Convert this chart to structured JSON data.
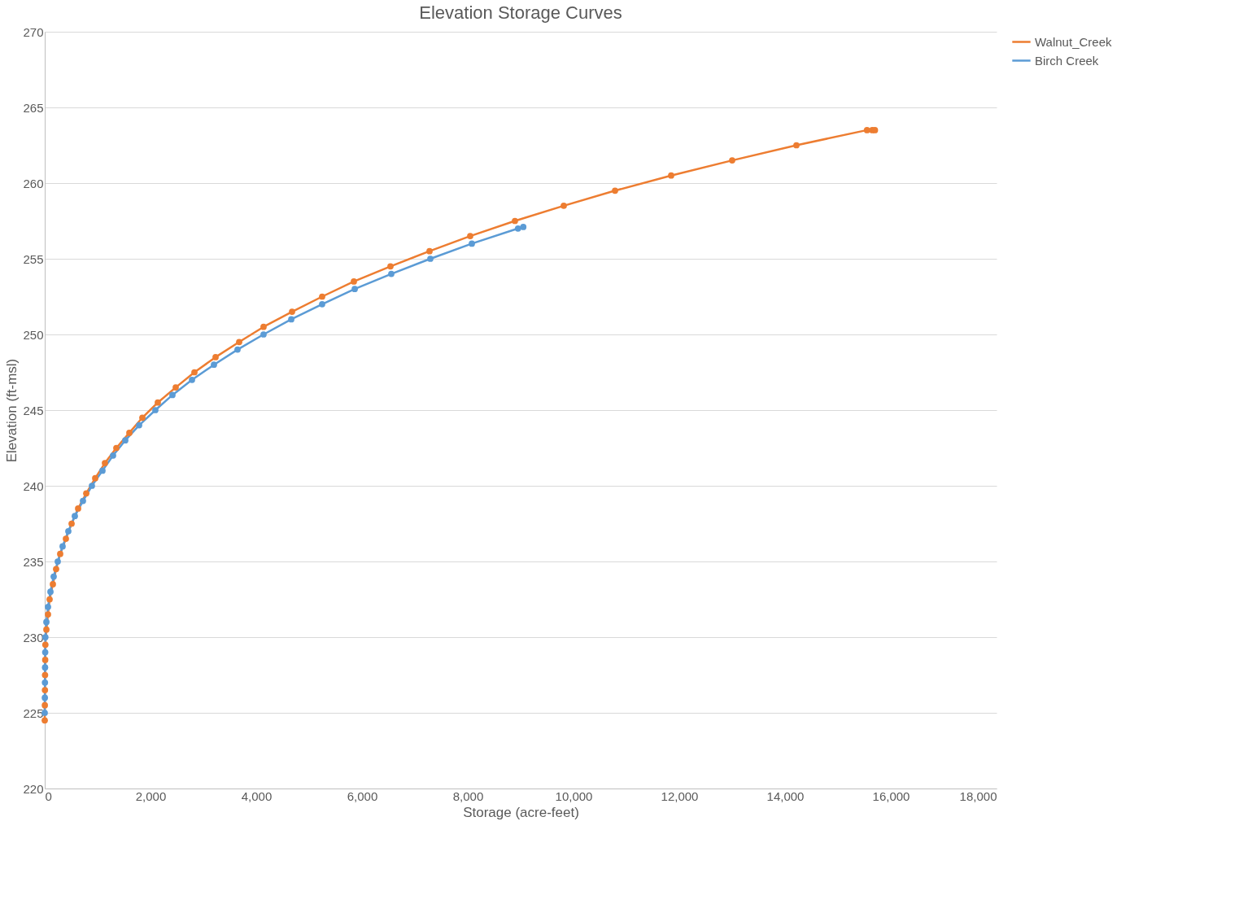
{
  "chart_data": {
    "type": "line",
    "title": "Elevation Storage Curves",
    "xlabel": "Storage (acre-feet)",
    "ylabel": "Elevation (ft-msl)",
    "xlim": [
      0,
      18000
    ],
    "xticks": [
      {
        "value": 0,
        "label": "0"
      },
      {
        "value": 2000,
        "label": "2,000"
      },
      {
        "value": 4000,
        "label": "4,000"
      },
      {
        "value": 6000,
        "label": "6,000"
      },
      {
        "value": 8000,
        "label": "8,000"
      },
      {
        "value": 10000,
        "label": "10,000"
      },
      {
        "value": 12000,
        "label": "12,000"
      },
      {
        "value": 14000,
        "label": "14,000"
      },
      {
        "value": 16000,
        "label": "16,000"
      },
      {
        "value": 18000,
        "label": "18,000"
      }
    ],
    "ylim": [
      220,
      270
    ],
    "yticks": [
      220,
      225,
      230,
      235,
      240,
      245,
      250,
      255,
      260,
      265,
      270
    ],
    "grid": "y",
    "legend": "right",
    "marker": "circle",
    "line_style": "solid",
    "series": [
      {
        "name": "Walnut_Creek",
        "color": "#ed7d31",
        "x": [
          0,
          2,
          4,
          6,
          9,
          12,
          31,
          62,
          92,
          154,
          215,
          292,
          400,
          508,
          631,
          785,
          954,
          1138,
          1354,
          1600,
          1846,
          2138,
          2477,
          2831,
          3231,
          3677,
          4138,
          4677,
          5246,
          5846,
          6538,
          7277,
          8046,
          8892,
          9815,
          10785,
          11846,
          13000,
          14215,
          15550,
          15650,
          15700
        ],
        "values": [
          224.5,
          225.5,
          226.5,
          227.5,
          228.5,
          229.5,
          230.5,
          231.5,
          232.5,
          233.5,
          234.5,
          235.5,
          236.5,
          237.5,
          238.5,
          239.5,
          240.5,
          241.5,
          242.5,
          243.5,
          244.5,
          245.5,
          246.5,
          247.5,
          248.5,
          249.5,
          250.5,
          251.5,
          252.5,
          253.5,
          254.5,
          255.5,
          256.5,
          257.5,
          258.5,
          259.5,
          260.5,
          261.5,
          262.5,
          263.5,
          263.5,
          263.5
        ]
      },
      {
        "name": "Birch Creek",
        "color": "#5b9bd5",
        "x": [
          0,
          2,
          4,
          6,
          9,
          12,
          31,
          62,
          108,
          169,
          246,
          338,
          446,
          569,
          723,
          892,
          1092,
          1292,
          1523,
          1785,
          2092,
          2415,
          2785,
          3200,
          3646,
          4138,
          4662,
          5246,
          5862,
          6554,
          7292,
          8077,
          8950,
          9050
        ],
        "values": [
          225,
          226,
          227,
          228,
          229,
          230,
          231,
          232,
          233,
          234,
          235,
          236,
          237,
          238,
          239,
          240,
          241,
          242,
          243,
          244,
          245,
          246,
          247,
          248,
          249,
          250,
          251,
          252,
          253,
          254,
          255,
          256,
          257,
          257.1
        ]
      }
    ]
  }
}
